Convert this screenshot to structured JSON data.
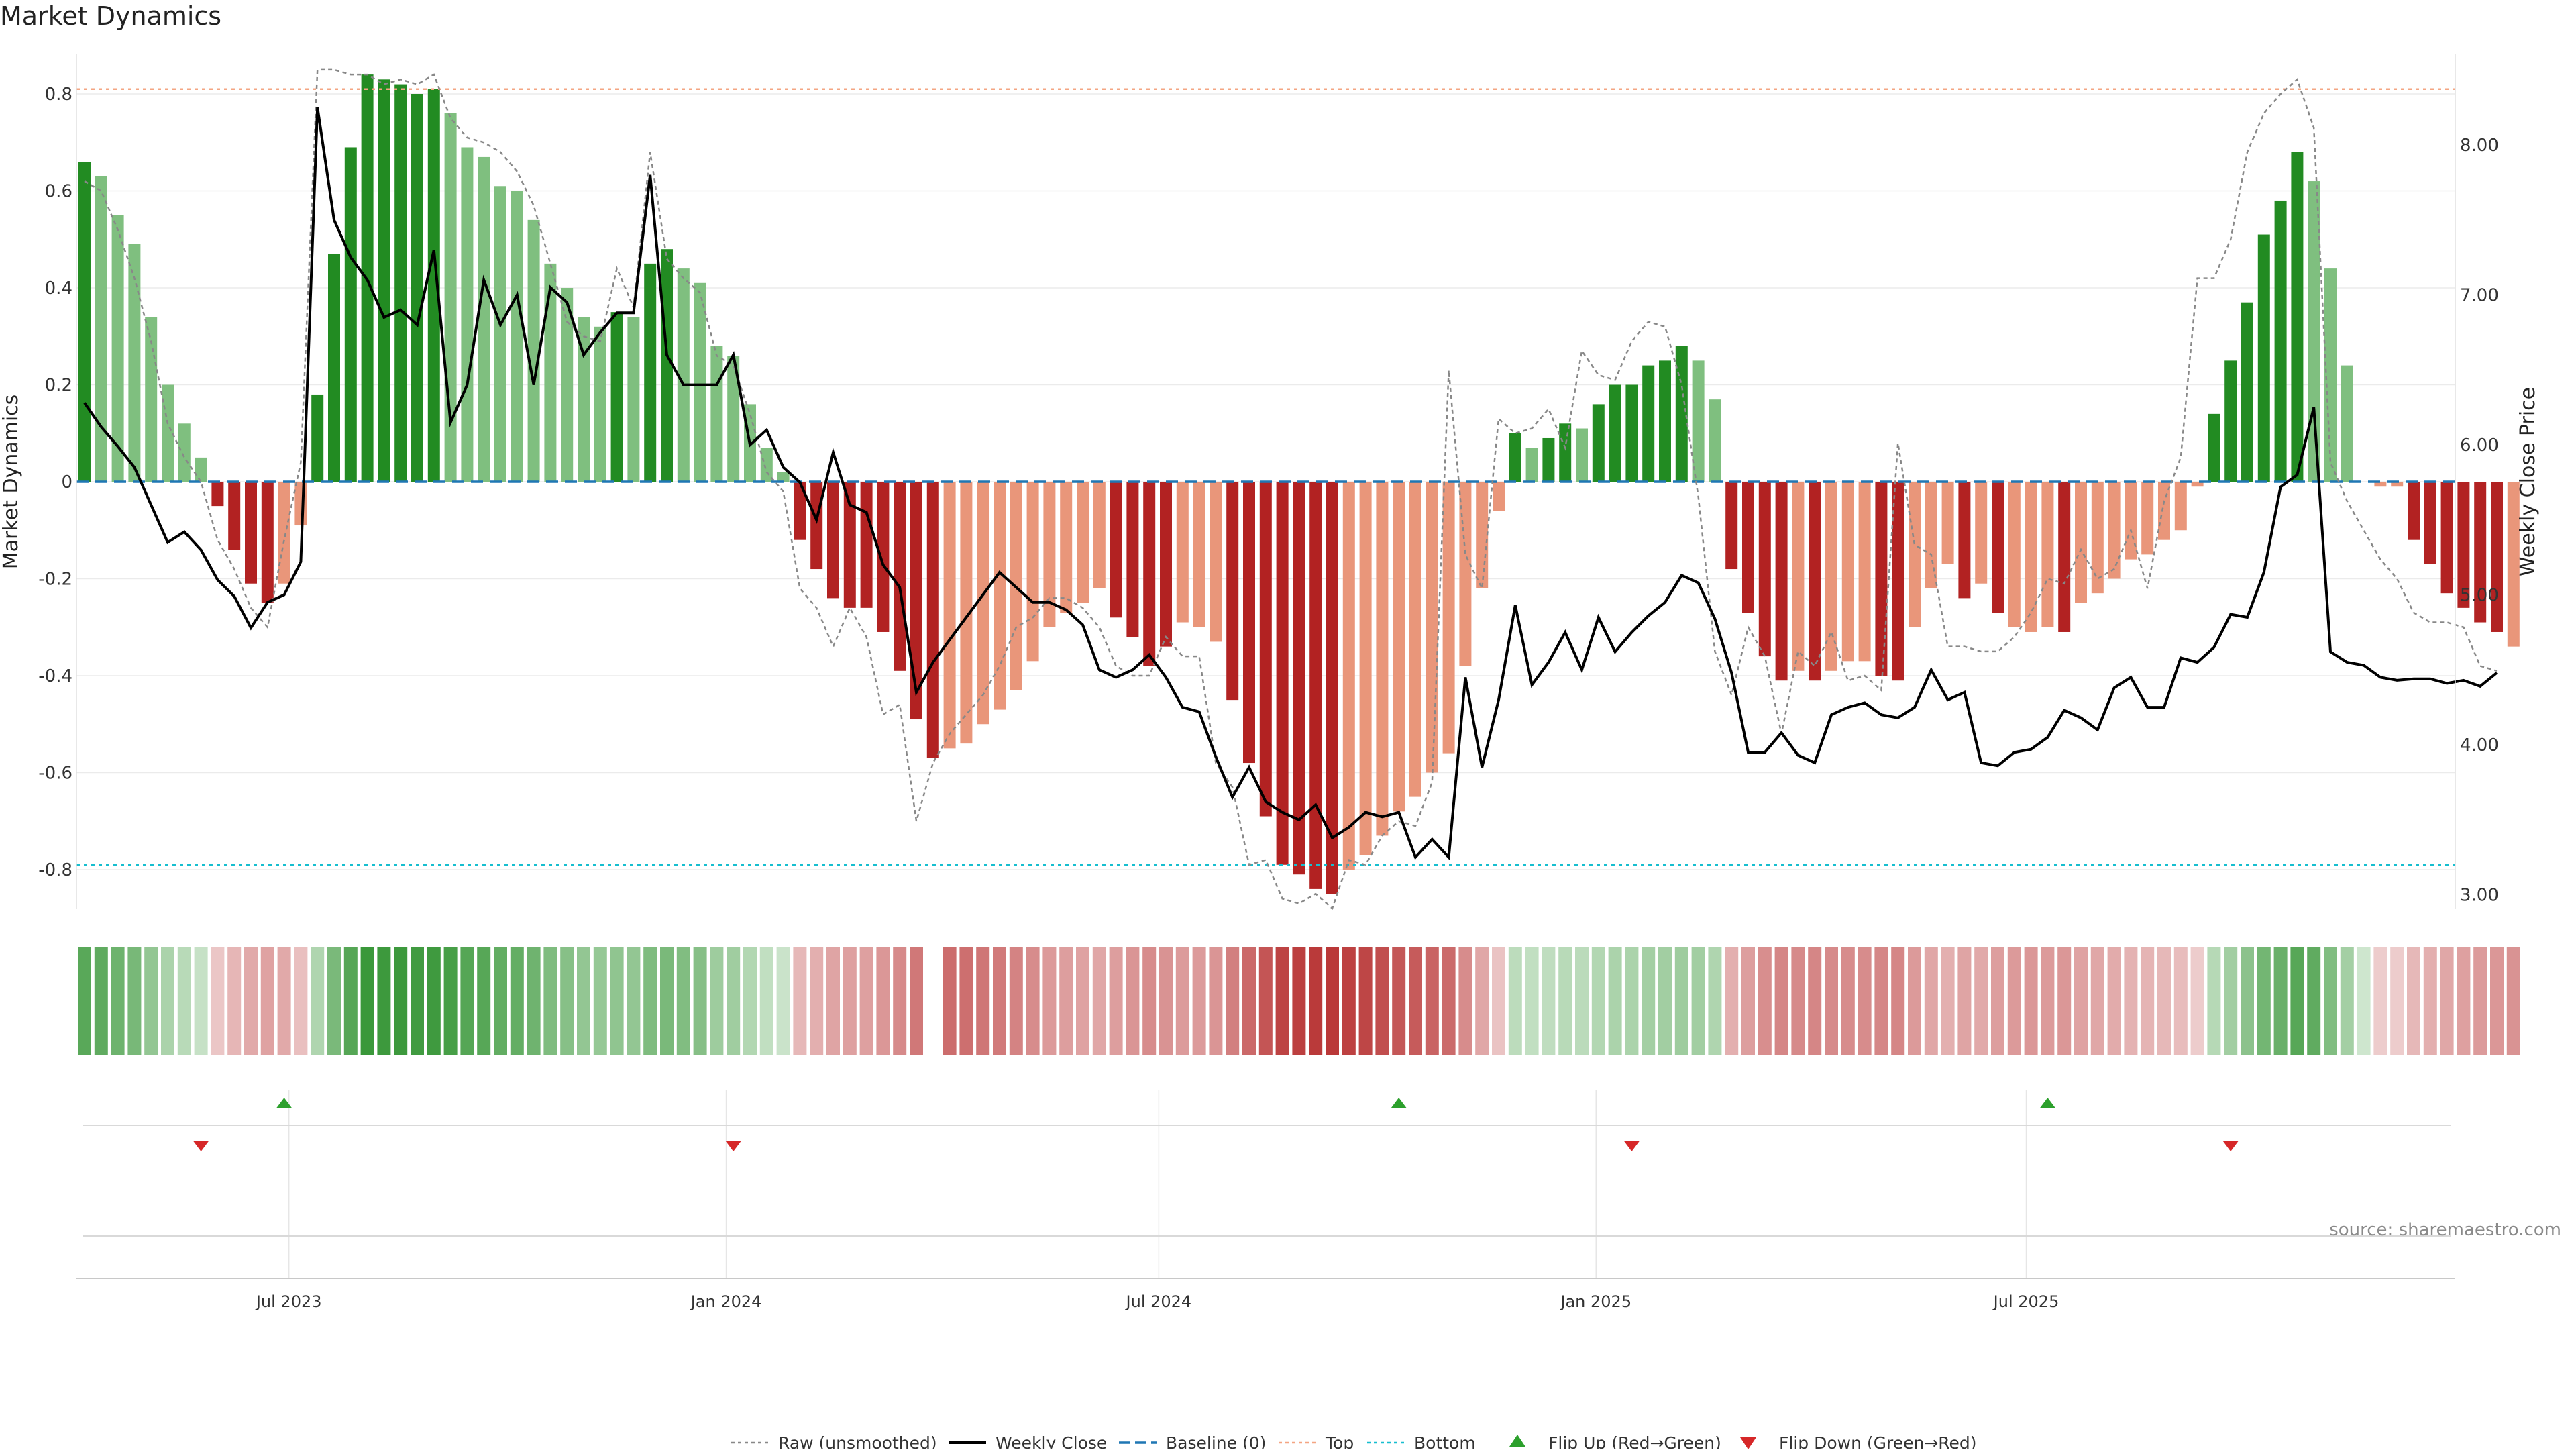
{
  "title": "Market Dynamics",
  "source": "source: sharemaestro.com",
  "colors": {
    "strong_green": "#228b22",
    "light_green": "#7fbf7f",
    "strong_red": "#b22222",
    "light_red": "#e9967a",
    "baseline": "#1f77b4",
    "top": "#f4a582",
    "bottom": "#17becf",
    "close": "#000000",
    "raw": "#888888",
    "flip_up": "#2ca02c",
    "flip_down": "#d62728"
  },
  "chart_data": {
    "type": "bar",
    "x_start": "2023-04-06",
    "x_step_days": 7,
    "ylabel": "Market Dynamics",
    "ylabel_right": "Weekly Close Price",
    "ylim": [
      -0.92,
      0.92
    ],
    "y2lim": [
      2.95,
      8.5
    ],
    "yticks": [
      "0.8",
      "0.6",
      "0.4",
      "0.2",
      "0",
      "-0.2",
      "-0.4",
      "-0.6",
      "-0.8"
    ],
    "y2ticks": [
      "8.00",
      "7.00",
      "6.00",
      "5.00",
      "4.00",
      "3.00"
    ],
    "xticks": [
      {
        "label": "Jul 2023",
        "date": "2023-07-01"
      },
      {
        "label": "Jan 2024",
        "date": "2024-01-01"
      },
      {
        "label": "Jul 2024",
        "date": "2024-07-01"
      },
      {
        "label": "Jan 2025",
        "date": "2025-01-01"
      },
      {
        "label": "Jul 2025",
        "date": "2025-07-01"
      }
    ],
    "top_level": 0.81,
    "bottom_level": -0.79,
    "bar_values": [
      0.66,
      0.63,
      0.55,
      0.49,
      0.34,
      0.2,
      0.12,
      0.05,
      -0.05,
      -0.14,
      -0.21,
      -0.25,
      -0.21,
      -0.09,
      0.18,
      0.47,
      0.69,
      0.84,
      0.83,
      0.82,
      0.8,
      0.81,
      0.76,
      0.69,
      0.67,
      0.61,
      0.6,
      0.54,
      0.45,
      0.4,
      0.34,
      0.32,
      0.35,
      0.34,
      0.45,
      0.48,
      0.44,
      0.41,
      0.28,
      0.26,
      0.16,
      0.07,
      0.02,
      -0.12,
      -0.18,
      -0.24,
      -0.26,
      -0.26,
      -0.31,
      -0.39,
      -0.49,
      -0.57,
      -0.55,
      -0.54,
      -0.5,
      -0.47,
      -0.43,
      -0.37,
      -0.3,
      -0.27,
      -0.25,
      -0.22,
      -0.28,
      -0.32,
      -0.38,
      -0.34,
      -0.29,
      -0.3,
      -0.33,
      -0.45,
      -0.58,
      -0.69,
      -0.79,
      -0.81,
      -0.84,
      -0.85,
      -0.8,
      -0.77,
      -0.73,
      -0.68,
      -0.65,
      -0.6,
      -0.56,
      -0.38,
      -0.22,
      -0.06,
      0.1,
      0.07,
      0.09,
      0.12,
      0.11,
      0.16,
      0.2,
      0.2,
      0.24,
      0.25,
      0.28,
      0.25,
      0.17,
      -0.18,
      -0.27,
      -0.36,
      -0.41,
      -0.39,
      -0.41,
      -0.39,
      -0.37,
      -0.37,
      -0.4,
      -0.41,
      -0.3,
      -0.22,
      -0.17,
      -0.24,
      -0.21,
      -0.27,
      -0.3,
      -0.31,
      -0.3,
      -0.31,
      -0.25,
      -0.23,
      -0.2,
      -0.16,
      -0.15,
      -0.12,
      -0.1,
      -0.01,
      0.14,
      0.25,
      0.37,
      0.51,
      0.58,
      0.68,
      0.62,
      0.44,
      0.24,
      0,
      -0.01,
      -0.01,
      -0.12,
      -0.17,
      -0.23,
      -0.26,
      -0.29,
      -0.31,
      -0.34
    ],
    "bar_strength": [
      "s",
      "l",
      "l",
      "l",
      "l",
      "l",
      "l",
      "l",
      "s",
      "s",
      "s",
      "s",
      "l",
      "l",
      "s",
      "s",
      "s",
      "s",
      "s",
      "s",
      "s",
      "s",
      "l",
      "l",
      "l",
      "l",
      "l",
      "l",
      "l",
      "l",
      "l",
      "l",
      "s",
      "l",
      "s",
      "s",
      "l",
      "l",
      "l",
      "l",
      "l",
      "l",
      "l",
      "s",
      "s",
      "s",
      "s",
      "s",
      "s",
      "s",
      "s",
      "s",
      "l",
      "l",
      "l",
      "l",
      "l",
      "l",
      "l",
      "l",
      "l",
      "l",
      "s",
      "s",
      "s",
      "s",
      "l",
      "l",
      "l",
      "s",
      "s",
      "s",
      "s",
      "s",
      "s",
      "s",
      "l",
      "l",
      "l",
      "l",
      "l",
      "l",
      "l",
      "l",
      "l",
      "l",
      "s",
      "l",
      "s",
      "s",
      "l",
      "s",
      "s",
      "s",
      "s",
      "s",
      "s",
      "l",
      "l",
      "s",
      "s",
      "s",
      "s",
      "l",
      "s",
      "l",
      "l",
      "l",
      "s",
      "s",
      "l",
      "l",
      "l",
      "s",
      "l",
      "s",
      "l",
      "l",
      "l",
      "s",
      "l",
      "l",
      "l",
      "l",
      "l",
      "l",
      "l",
      "l",
      "s",
      "s",
      "s",
      "s",
      "s",
      "s",
      "l",
      "l",
      "l",
      "l",
      "l",
      "l",
      "s",
      "s",
      "s",
      "s",
      "s",
      "s"
    ],
    "raw_values": [
      0.62,
      0.6,
      0.52,
      0.42,
      0.29,
      0.12,
      0.05,
      0.0,
      -0.12,
      -0.18,
      -0.26,
      -0.3,
      -0.12,
      0.04,
      0.85,
      0.85,
      0.84,
      0.84,
      0.82,
      0.83,
      0.82,
      0.84,
      0.75,
      0.71,
      0.7,
      0.68,
      0.64,
      0.57,
      0.45,
      0.33,
      0.3,
      0.29,
      0.44,
      0.36,
      0.68,
      0.46,
      0.42,
      0.39,
      0.26,
      0.24,
      0.14,
      0.02,
      -0.02,
      -0.22,
      -0.26,
      -0.34,
      -0.26,
      -0.32,
      -0.48,
      -0.46,
      -0.7,
      -0.58,
      -0.52,
      -0.48,
      -0.44,
      -0.38,
      -0.3,
      -0.28,
      -0.24,
      -0.24,
      -0.26,
      -0.3,
      -0.38,
      -0.4,
      -0.4,
      -0.32,
      -0.36,
      -0.36,
      -0.58,
      -0.63,
      -0.79,
      -0.78,
      -0.86,
      -0.87,
      -0.85,
      -0.88,
      -0.78,
      -0.79,
      -0.73,
      -0.7,
      -0.71,
      -0.62,
      0.23,
      -0.15,
      -0.22,
      0.13,
      0.1,
      0.11,
      0.15,
      0.07,
      0.27,
      0.22,
      0.21,
      0.29,
      0.33,
      0.32,
      0.2,
      -0.03,
      -0.35,
      -0.44,
      -0.3,
      -0.36,
      -0.52,
      -0.35,
      -0.38,
      -0.31,
      -0.41,
      -0.4,
      -0.43,
      0.08,
      -0.13,
      -0.15,
      -0.34,
      -0.34,
      -0.35,
      -0.35,
      -0.32,
      -0.27,
      -0.2,
      -0.21,
      -0.14,
      -0.2,
      -0.18,
      -0.1,
      -0.22,
      -0.04,
      0.05,
      0.42,
      0.42,
      0.5,
      0.68,
      0.76,
      0.8,
      0.83,
      0.73,
      0.04,
      -0.04,
      -0.1,
      -0.16,
      -0.2,
      -0.27,
      -0.29,
      -0.29,
      -0.3,
      -0.38,
      -0.39
    ],
    "close_values": [
      6.28,
      6.12,
      5.99,
      5.85,
      5.6,
      5.35,
      5.42,
      5.3,
      5.1,
      4.99,
      4.78,
      4.95,
      5.0,
      5.22,
      8.25,
      7.5,
      7.25,
      7.1,
      6.85,
      6.9,
      6.8,
      7.3,
      6.15,
      6.4,
      7.1,
      6.8,
      7.0,
      6.4,
      7.05,
      6.95,
      6.6,
      6.75,
      6.88,
      6.88,
      7.8,
      6.6,
      6.4,
      6.4,
      6.4,
      6.6,
      6.0,
      6.1,
      5.85,
      5.75,
      5.5,
      5.95,
      5.6,
      5.55,
      5.2,
      5.05,
      4.35,
      4.55,
      4.7,
      4.85,
      5.0,
      5.15,
      5.05,
      4.95,
      4.95,
      4.9,
      4.8,
      4.5,
      4.45,
      4.5,
      4.6,
      4.45,
      4.25,
      4.22,
      3.92,
      3.65,
      3.85,
      3.62,
      3.55,
      3.5,
      3.6,
      3.38,
      3.45,
      3.55,
      3.52,
      3.55,
      3.25,
      3.37,
      3.25,
      4.45,
      3.85,
      4.3,
      4.93,
      4.4,
      4.55,
      4.75,
      4.5,
      4.85,
      4.62,
      4.75,
      4.86,
      4.95,
      5.13,
      5.08,
      4.84,
      4.48,
      3.95,
      3.95,
      4.08,
      3.93,
      3.88,
      4.2,
      4.25,
      4.28,
      4.2,
      4.18,
      4.25,
      4.5,
      4.3,
      4.35,
      3.88,
      3.86,
      3.95,
      3.97,
      4.05,
      4.23,
      4.18,
      4.1,
      4.38,
      4.45,
      4.25,
      4.25,
      4.58,
      4.55,
      4.65,
      4.87,
      4.85,
      5.15,
      5.72,
      5.8,
      6.25,
      4.62,
      4.55,
      4.53,
      4.45,
      4.43,
      4.44,
      4.44,
      4.41,
      4.43,
      4.39,
      4.48
    ],
    "flips_up": [
      "2023-06-29",
      "2024-10-10",
      "2025-07-10"
    ],
    "flips_down": [
      "2023-05-25",
      "2024-01-04",
      "2025-01-16",
      "2025-09-25"
    ],
    "legend": [
      "Raw (unsmoothed)",
      "Weekly Close",
      "Baseline (0)",
      "Top",
      "Bottom",
      "Flip Up (Red→Green)",
      "Flip Down (Green→Red)"
    ]
  }
}
